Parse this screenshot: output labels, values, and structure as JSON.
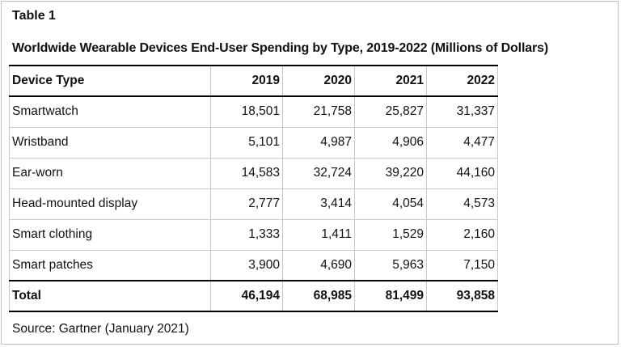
{
  "table_label": "Table 1",
  "title": "Worldwide Wearable Devices End-User Spending by Type, 2019-2022 (Millions of Dollars)",
  "columns": [
    "Device Type",
    "2019",
    "2020",
    "2021",
    "2022"
  ],
  "rows": [
    {
      "device": "Smartwatch",
      "values": [
        "18,501",
        "21,758",
        "25,827",
        "31,337"
      ]
    },
    {
      "device": "Wristband",
      "values": [
        "5,101",
        "4,987",
        "4,906",
        "4,477"
      ]
    },
    {
      "device": "Ear-worn",
      "values": [
        "14,583",
        "32,724",
        "39,220",
        "44,160"
      ]
    },
    {
      "device": "Head-mounted display",
      "values": [
        "2,777",
        "3,414",
        "4,054",
        "4,573"
      ]
    },
    {
      "device": "Smart clothing",
      "values": [
        "1,333",
        "1,411",
        "1,529",
        "2,160"
      ]
    },
    {
      "device": "Smart patches",
      "values": [
        "3,900",
        "4,690",
        "5,963",
        "7,150"
      ]
    }
  ],
  "total": {
    "label": "Total",
    "values": [
      "46,194",
      "68,985",
      "81,499",
      "93,858"
    ]
  },
  "source": "Source: Gartner (January 2021)"
}
